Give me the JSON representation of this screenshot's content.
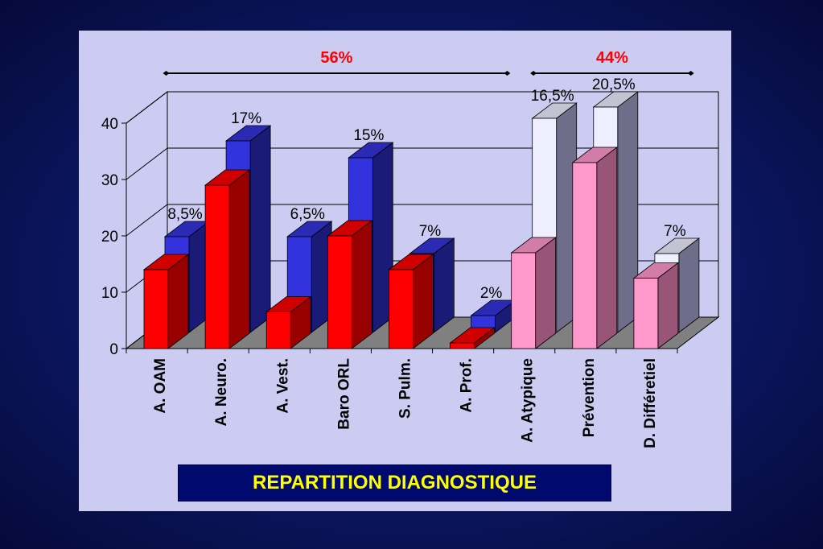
{
  "colors": {
    "background": "#0b1660",
    "panel": "#ccccf2",
    "floor": "#808080",
    "red_front": "#ff0000",
    "red_side": "#990000",
    "blue_front": "#3333dd",
    "blue_side": "#1a1a77",
    "pink_front": "#ff99cc",
    "pink_side": "#995577",
    "light_front": "#eeeeff",
    "light_side": "#6e6e8a",
    "group_percent": "#ff0000",
    "caption_bg": "#000a6e",
    "caption_text": "#ffff00"
  },
  "chart_data": {
    "type": "bar",
    "subtype": "3d-clustered-bar",
    "categories": [
      "A. OAM",
      "A. Neuro.",
      "A. Vest.",
      "Baro ORL",
      "S. Pulm.",
      "A. Prof.",
      "A. Atypique",
      "Prévention",
      "D. Différetiel"
    ],
    "series": [
      {
        "values": [
          14,
          29,
          6.5,
          20,
          14,
          1,
          17,
          33,
          12.5
        ]
      },
      {
        "values": [
          17,
          34,
          17,
          31,
          14,
          3,
          38,
          40,
          14
        ]
      }
    ],
    "data_labels": [
      {
        "category": "A. OAM",
        "text": "8,5%"
      },
      {
        "category": "A. Neuro.",
        "text": "17%"
      },
      {
        "category": "A. Vest.",
        "text": "6,5%"
      },
      {
        "category": "Baro ORL",
        "text": "15%"
      },
      {
        "category": "S. Pulm.",
        "text": "7%"
      },
      {
        "category": "A. Prof.",
        "text": "2%"
      },
      {
        "category": "A. Atypique",
        "text": "16,5%"
      },
      {
        "category": "Prévention",
        "text": "20,5%"
      },
      {
        "category": "D. Différetiel",
        "text": "7%"
      }
    ],
    "yticks": [
      "0",
      "10",
      "20",
      "30",
      "40"
    ],
    "ylim": [
      0,
      40
    ],
    "grid": true,
    "groups": [
      {
        "label": "56%",
        "from": "A. OAM",
        "to": "A. Prof."
      },
      {
        "label": "44%",
        "from": "A. Atypique",
        "to": "D. Différetiel"
      }
    ],
    "title": "",
    "xlabel": "",
    "ylabel": ""
  },
  "caption": "REPARTITION DIAGNOSTIQUE"
}
